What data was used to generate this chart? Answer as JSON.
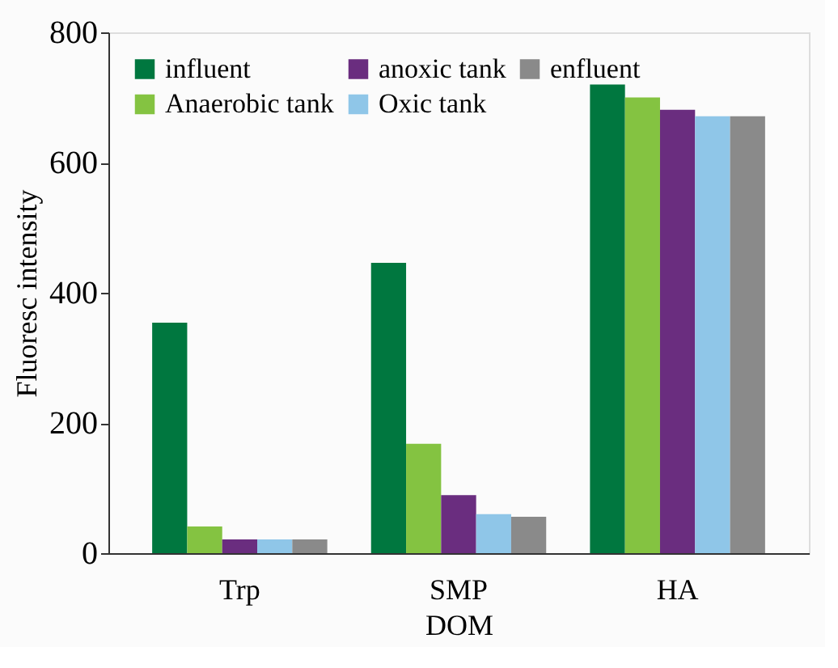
{
  "chart_data": {
    "type": "bar",
    "xlabel": "DOM",
    "ylabel": "Fluoresc intensity",
    "categories": [
      "Trp",
      "SMP",
      "HA"
    ],
    "series": [
      {
        "name": "influent",
        "color": "#00773f",
        "values": [
          354,
          446,
          720
        ]
      },
      {
        "name": "Anaerobic tank",
        "color": "#84c341",
        "values": [
          41,
          168,
          700
        ]
      },
      {
        "name": "anoxic tank",
        "color": "#6a2d7f",
        "values": [
          21,
          89,
          681
        ]
      },
      {
        "name": "Oxic tank",
        "color": "#8fc6e8",
        "values": [
          21,
          60,
          671
        ]
      },
      {
        "name": "enfluent",
        "color": "#8a8a8a",
        "values": [
          21,
          56,
          671
        ]
      }
    ],
    "ylim": [
      0,
      800
    ],
    "yticks": [
      0,
      200,
      400,
      600,
      800
    ],
    "grid": false,
    "legend": "top left"
  }
}
